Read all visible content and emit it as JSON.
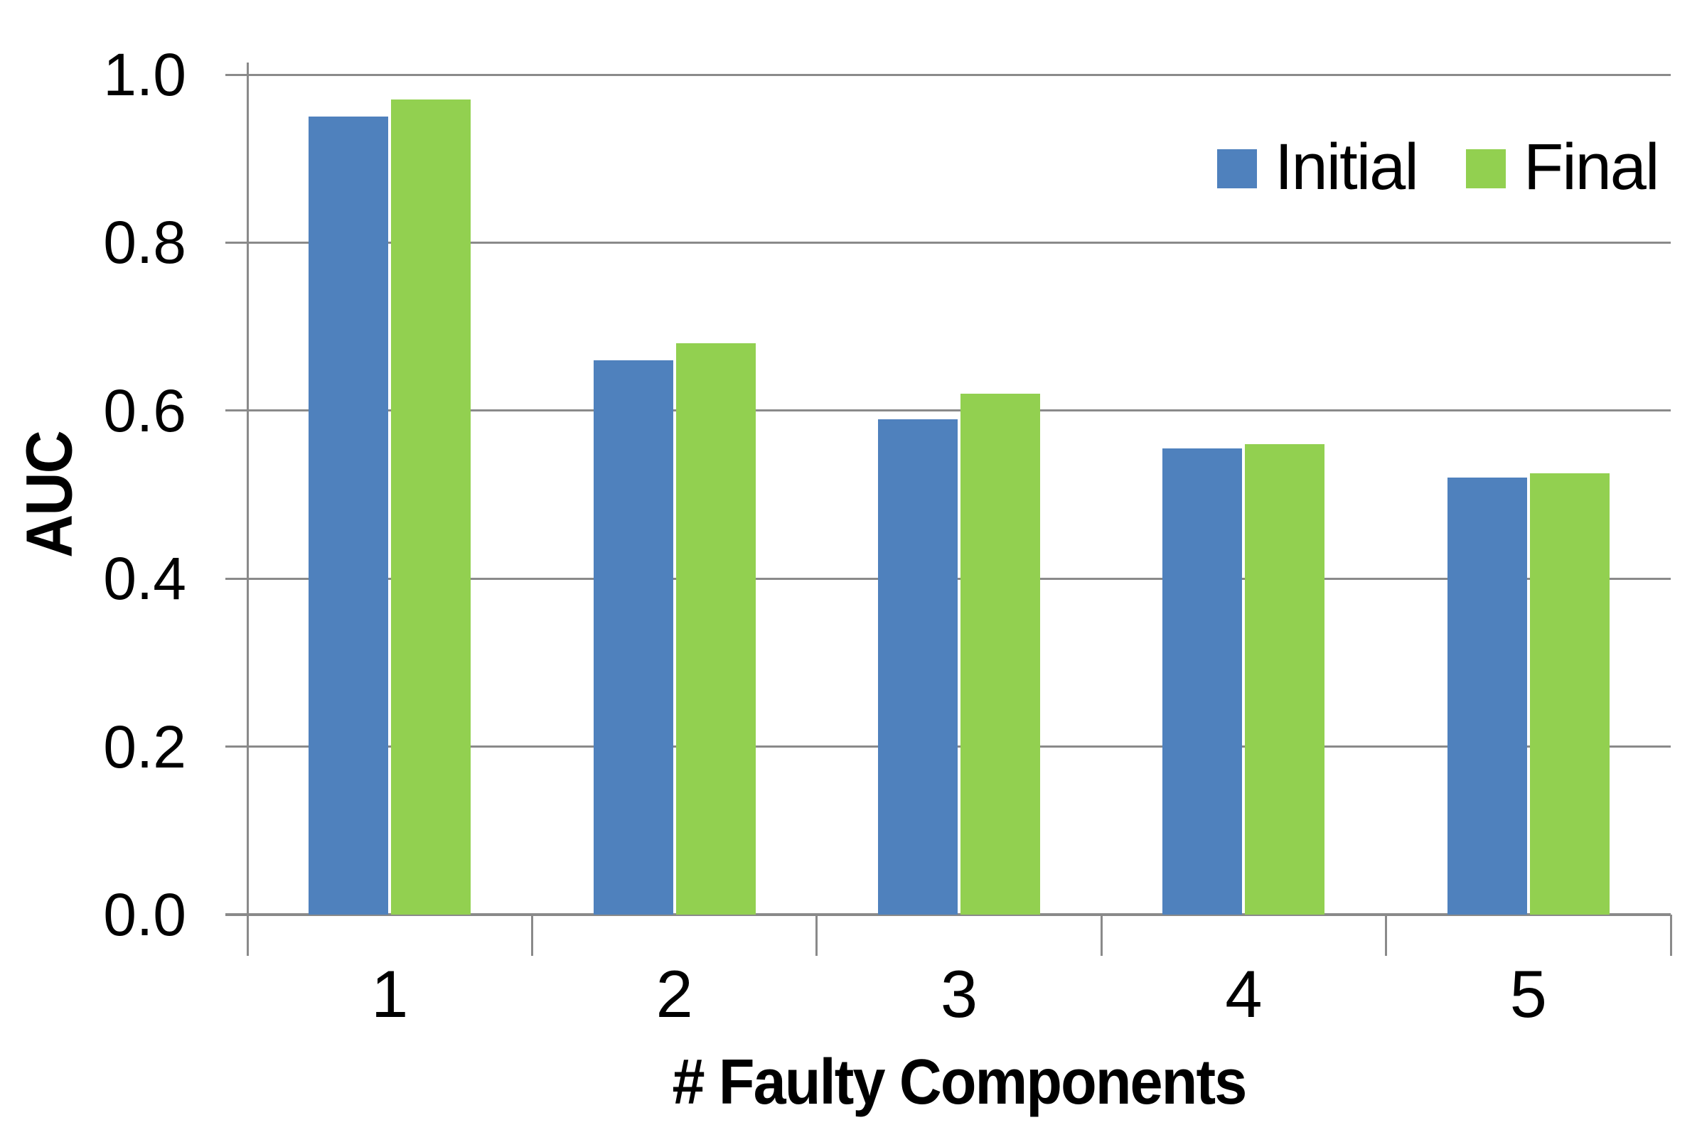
{
  "chart_data": {
    "type": "bar",
    "title": "",
    "categories": [
      "1",
      "2",
      "3",
      "4",
      "5"
    ],
    "series": [
      {
        "name": "Initial",
        "color": "#4F81BD",
        "values": [
          0.95,
          0.66,
          0.59,
          0.555,
          0.52
        ]
      },
      {
        "name": "Final",
        "color": "#92D050",
        "values": [
          0.97,
          0.68,
          0.62,
          0.56,
          0.525
        ]
      }
    ],
    "xlabel": "# Faulty Components",
    "ylabel": "AUC",
    "ylim": [
      0.0,
      1.0
    ],
    "ytick_step": 0.2,
    "yticks": [
      "0.0",
      "0.2",
      "0.4",
      "0.6",
      "0.8",
      "1.0"
    ],
    "grid": true,
    "legend_position": "top-right-inside"
  },
  "colors": {
    "gridline": "#8A8A8A",
    "axis": "#8A8A8A",
    "text": "#000000",
    "background": "#FFFFFF"
  }
}
